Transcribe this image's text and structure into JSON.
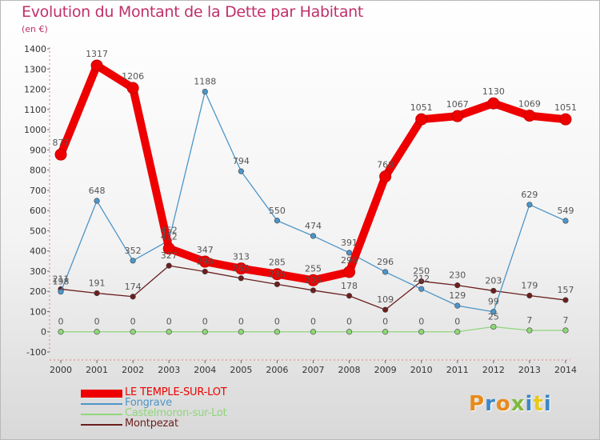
{
  "title": "Evolution du Montant de la Dette par Habitant",
  "unit": "(en €)",
  "brand": "Proxiti",
  "brand_colors": [
    "#e88a1a",
    "#3a87c8",
    "#e88a1a",
    "#7fb93b",
    "#3a87c8",
    "#e8c81a",
    "#3a87c8"
  ],
  "chart_data": {
    "type": "line",
    "title": "Evolution du Montant de la Dette par Habitant",
    "ylabel": "(en €)",
    "x": [
      "2000",
      "2001",
      "2002",
      "2003",
      "2004",
      "2005",
      "2006",
      "2007",
      "2008",
      "2009",
      "2010",
      "2011",
      "2012",
      "2013",
      "2014"
    ],
    "ylim": [
      -100,
      1400
    ],
    "yticks": [
      "-100",
      "0",
      "100",
      "200",
      "300",
      "400",
      "500",
      "600",
      "700",
      "800",
      "900",
      "1000",
      "1100",
      "1200",
      "1300",
      "1400"
    ],
    "grid": false,
    "legend": "bottom-left",
    "series": [
      {
        "name": "LE TEMPLE-SUR-LOT",
        "color": "#ee0000",
        "style": "thick",
        "values": [
          877,
          1317,
          1206,
          412,
          347,
          313,
          285,
          255,
          296,
          768,
          1051,
          1067,
          1130,
          1069,
          1051
        ]
      },
      {
        "name": "Fongrave",
        "color": "#4d95c8",
        "style": "thin",
        "values": [
          198,
          648,
          352,
          452,
          1188,
          794,
          550,
          474,
          391,
          296,
          212,
          129,
          99,
          629,
          549
        ]
      },
      {
        "name": "Castelmoron-sur-Lot",
        "color": "#8fd67a",
        "style": "thin",
        "values": [
          0,
          0,
          0,
          0,
          0,
          0,
          0,
          0,
          0,
          0,
          0,
          0,
          25,
          7,
          7
        ]
      },
      {
        "name": "Montpezat",
        "color": "#6b1e1e",
        "style": "thin",
        "values": [
          211,
          191,
          174,
          327,
          298,
          265,
          235,
          205,
          178,
          109,
          250,
          230,
          203,
          179,
          157
        ]
      }
    ]
  }
}
